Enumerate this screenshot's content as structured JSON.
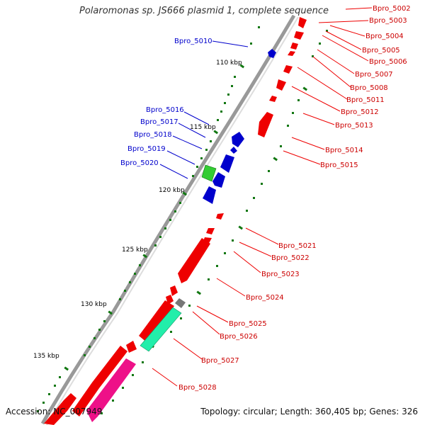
{
  "title": "Polaromonas sp. JS666 plasmid 1, complete sequence",
  "footer": {
    "accession": "Accession: NC_007949",
    "summary": "Topology: circular; Length: 360,405 bp; Genes: 326"
  },
  "colors": {
    "forward_gene": "#0000cc",
    "reverse_gene": "#ee0000",
    "label_forward": "#0000cc",
    "label_reverse": "#cc0000",
    "backbone": "#999999",
    "tick": "#117711",
    "green_feature": "#33cc33",
    "teal_feature": "#22eeaa",
    "pink_feature": "#ee1188",
    "gray_feature": "#777777"
  },
  "kbp_ticks": [
    {
      "label": "110 kbp",
      "position_kbp": 110
    },
    {
      "label": "115 kbp",
      "position_kbp": 115
    },
    {
      "label": "120 kbp",
      "position_kbp": 120
    },
    {
      "label": "125 kbp",
      "position_kbp": 125
    },
    {
      "label": "130 kbp",
      "position_kbp": 130
    },
    {
      "label": "135 kbp",
      "position_kbp": 135
    }
  ],
  "gene_labels_left": [
    "Bpro_5010",
    "Bpro_5016",
    "Bpro_5017",
    "Bpro_5018",
    "Bpro_5019",
    "Bpro_5020"
  ],
  "gene_labels_right": [
    "Bpro_5002",
    "Bpro_5003",
    "Bpro_5004",
    "Bpro_5005",
    "Bpro_5006",
    "Bpro_5007",
    "Bpro_5008",
    "Bpro_5011",
    "Bpro_5012",
    "Bpro_5013",
    "Bpro_5014",
    "Bpro_5015",
    "Bpro_5021",
    "Bpro_5022",
    "Bpro_5023",
    "Bpro_5024",
    "Bpro_5025",
    "Bpro_5026",
    "Bpro_5027",
    "Bpro_5028"
  ]
}
